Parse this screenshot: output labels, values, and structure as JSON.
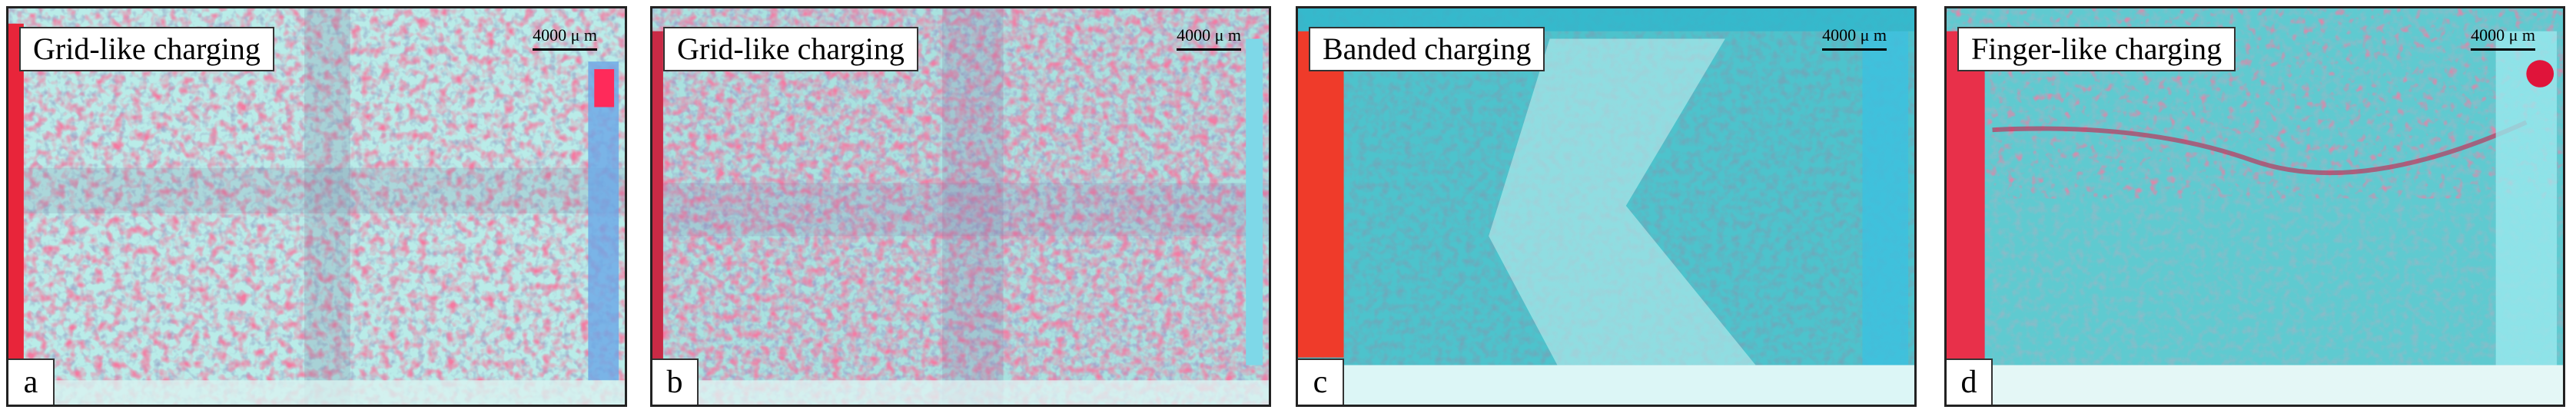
{
  "panels": [
    {
      "letter": "a",
      "title": "Grid-like charging",
      "scale": "4000 μ m",
      "colors": {
        "base": "#b9ece8",
        "dots": "#e8305a",
        "edge_left": "#e8253a",
        "edge_right": "#6aa6e6"
      }
    },
    {
      "letter": "b",
      "title": "Grid-like charging",
      "scale": "4000 μ m",
      "colors": {
        "base": "#a9e2df",
        "dots": "#e4335e",
        "edge_left": "#c92a45",
        "edge_right": "#7ed8e8"
      }
    },
    {
      "letter": "c",
      "title": "Banded charging",
      "scale": "4000 μ m",
      "colors": {
        "base": "#4dc3cc",
        "dots": "#2f7a8a",
        "edge_left": "#ef3b2a",
        "edge_right": "#3cc0e0"
      }
    },
    {
      "letter": "d",
      "title": "Finger-like charging",
      "scale": "4000 μ m",
      "colors": {
        "base": "#5fcad0",
        "dots": "#d33a60",
        "edge_left": "#e8304a",
        "edge_right": "#9ae8ee"
      }
    }
  ]
}
